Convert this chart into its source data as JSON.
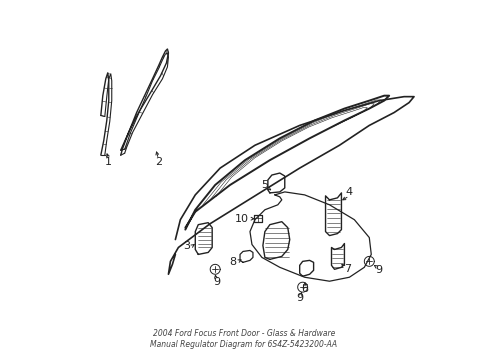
{
  "background_color": "#ffffff",
  "line_color": "#222222",
  "figsize": [
    4.89,
    3.6
  ],
  "dpi": 100,
  "title": "2004 Ford Focus Front Door - Glass & Hardware\nManual Regulator Diagram for 6S4Z-5423200-AA"
}
